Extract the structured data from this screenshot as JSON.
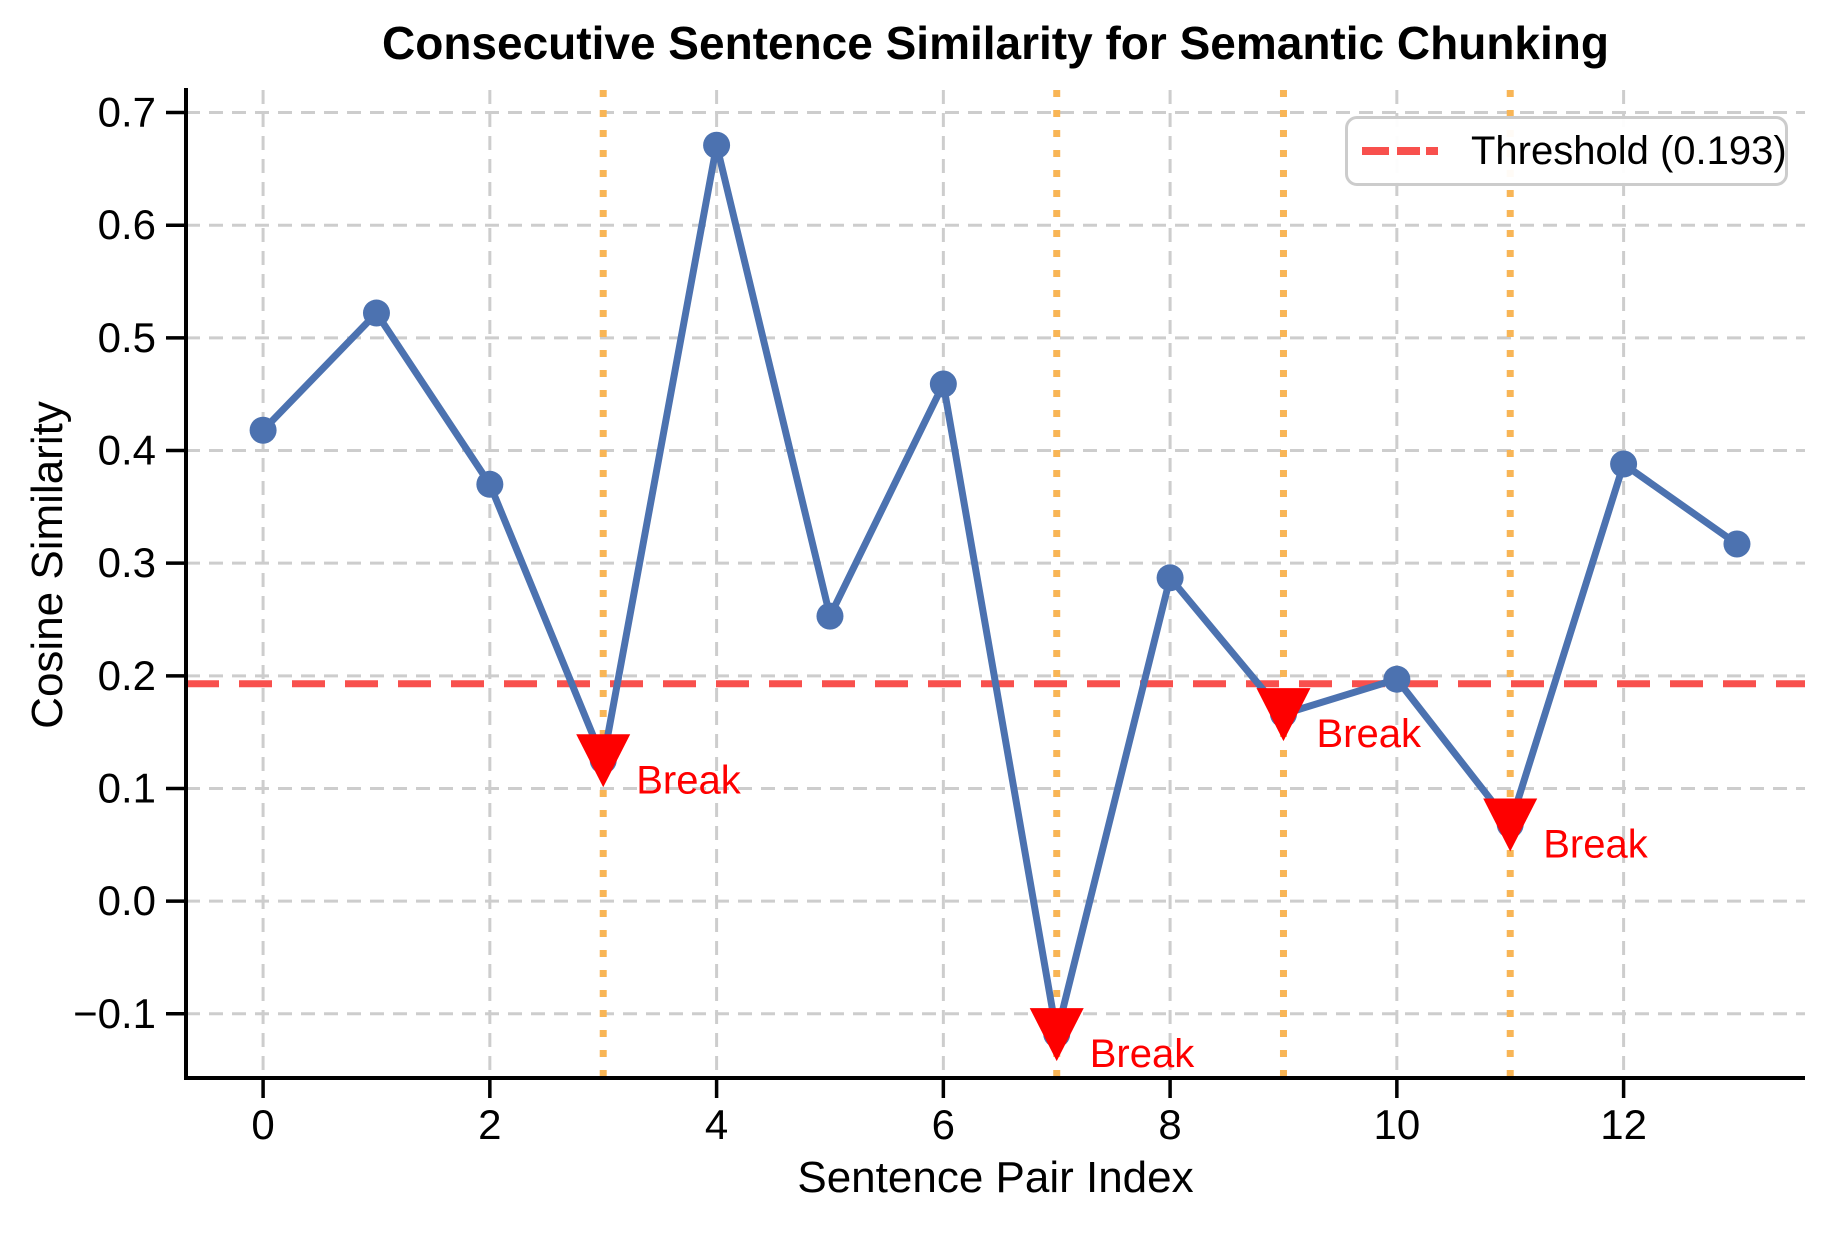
{
  "chart_data": {
    "type": "line",
    "title": "Consecutive Sentence Similarity for Semantic Chunking",
    "xlabel": "Sentence Pair Index",
    "ylabel": "Cosine Similarity",
    "x": [
      0,
      1,
      2,
      3,
      4,
      5,
      6,
      7,
      8,
      9,
      10,
      11,
      12,
      13
    ],
    "values": [
      0.418,
      0.522,
      0.37,
      0.125,
      0.671,
      0.253,
      0.459,
      -0.118,
      0.287,
      0.166,
      0.197,
      0.068,
      0.388,
      0.317
    ],
    "threshold": 0.193,
    "breaks": [
      3,
      7,
      9,
      11
    ],
    "break_label": "Break",
    "legend": {
      "position": "upper right",
      "entries": [
        {
          "label": "Threshold (0.193)",
          "style": "dashed",
          "color": "#f8504d"
        }
      ]
    },
    "xticks": [
      {
        "v": 0,
        "label": "0"
      },
      {
        "v": 2,
        "label": "2"
      },
      {
        "v": 4,
        "label": "4"
      },
      {
        "v": 6,
        "label": "6"
      },
      {
        "v": 8,
        "label": "8"
      },
      {
        "v": 10,
        "label": "10"
      },
      {
        "v": 12,
        "label": "12"
      }
    ],
    "yticks": [
      {
        "v": -0.1,
        "label": "−0.1"
      },
      {
        "v": 0.0,
        "label": "0.0"
      },
      {
        "v": 0.1,
        "label": "0.1"
      },
      {
        "v": 0.2,
        "label": "0.2"
      },
      {
        "v": 0.3,
        "label": "0.3"
      },
      {
        "v": 0.4,
        "label": "0.4"
      },
      {
        "v": 0.5,
        "label": "0.5"
      },
      {
        "v": 0.6,
        "label": "0.6"
      },
      {
        "v": 0.7,
        "label": "0.7"
      }
    ],
    "xlim": [
      -0.68,
      13.6
    ],
    "ylim": [
      -0.157,
      0.72
    ],
    "grid": true,
    "colors": {
      "line": "#4c72b0",
      "threshold": "#f8504d",
      "break_marker": "#fe0000",
      "break_text": "#fe0000",
      "break_line": "#f8b556",
      "grid": "#cdcdcd",
      "axis": "#000000",
      "text": "#000000"
    }
  }
}
